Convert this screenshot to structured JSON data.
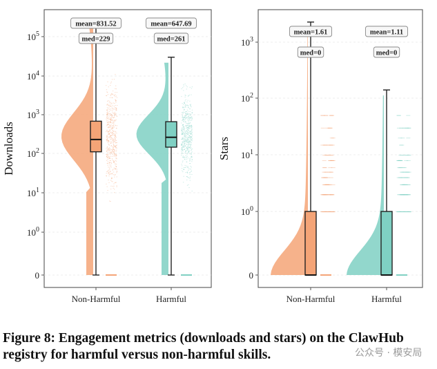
{
  "chart_data": [
    {
      "type": "violin-box",
      "ylabel": "Downloads",
      "yscale": "symlog",
      "yticks": [
        "0",
        "10^0",
        "10^1",
        "10^2",
        "10^3",
        "10^4",
        "10^5"
      ],
      "categories": [
        "Non-Harmful",
        "Harmful"
      ],
      "grid": true,
      "series": [
        {
          "category": "Non-Harmful",
          "color": "#f4a477",
          "mean": 831.52,
          "median": 229,
          "q1": 110,
          "q3": 680,
          "whisker_low": 0,
          "whisker_high": 270000,
          "mean_label": "mean=831.52",
          "median_label": "med=229"
        },
        {
          "category": "Harmful",
          "color": "#7fd0c3",
          "mean": 647.69,
          "median": 261,
          "q1": 145,
          "q3": 660,
          "whisker_low": 0,
          "whisker_high": 30000,
          "mean_label": "mean=647.69",
          "median_label": "med=261"
        }
      ]
    },
    {
      "type": "violin-box",
      "ylabel": "Stars",
      "yscale": "symlog",
      "yticks": [
        "0",
        "10^0",
        "10^1",
        "10^2",
        "10^3"
      ],
      "categories": [
        "Non-Harmful",
        "Harmful"
      ],
      "grid": true,
      "series": [
        {
          "category": "Non-Harmful",
          "color": "#f4a477",
          "mean": 1.61,
          "median": 0,
          "q1": 0,
          "q3": 1,
          "whisker_low": 0,
          "whisker_high": 2200,
          "mean_label": "mean=1.61",
          "median_label": "med=0"
        },
        {
          "category": "Harmful",
          "color": "#7fd0c3",
          "mean": 1.11,
          "median": 0,
          "q1": 0,
          "q3": 1,
          "whisker_low": 0,
          "whisker_high": 140,
          "mean_label": "mean=1.11",
          "median_label": "med=0"
        }
      ]
    }
  ],
  "caption": "Figure 8: Engagement metrics (downloads and stars) on the ClawHub registry for harmful versus non-harmful skills.",
  "watermark": "公众号 · 模安局"
}
